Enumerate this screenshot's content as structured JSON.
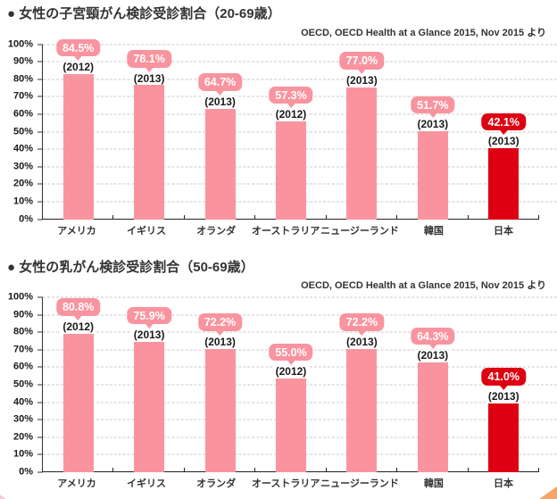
{
  "colors": {
    "bar_pink": "#f9949f",
    "highlight_red": "#de0012",
    "grid": "#c9c9c9",
    "axis": "#222222",
    "title_text": "#333333"
  },
  "chart_data": [
    {
      "type": "bar",
      "title": "● 女性の子宮頸がん検診受診割合（20-69歳）",
      "source": "OECD, OECD Health at a Glance 2015, Nov 2015 より",
      "categories": [
        "アメリカ",
        "イギリス",
        "オランダ",
        "オーストラリア",
        "ニュージーランド",
        "韓国",
        "日本"
      ],
      "values": [
        84.5,
        78.1,
        64.7,
        57.3,
        77.0,
        51.7,
        42.1
      ],
      "value_labels": [
        "84.5%",
        "78.1%",
        "64.7%",
        "57.3%",
        "77.0%",
        "51.7%",
        "42.1%"
      ],
      "years": [
        "(2012)",
        "(2013)",
        "(2013)",
        "(2012)",
        "(2013)",
        "(2013)",
        "(2013)"
      ],
      "highlight_index": 6,
      "bar_color": "#f9949f",
      "highlight_color": "#de0012",
      "xlabel": "",
      "ylabel": "",
      "ylim": [
        0,
        100
      ],
      "ytick_step": 10,
      "ytick_suffix": "%",
      "grid": true,
      "legend": false
    },
    {
      "type": "bar",
      "title": "● 女性の乳がん検診受診割合（50-69歳）",
      "source": "OECD, OECD Health at a Glance 2015, Nov 2015 より",
      "categories": [
        "アメリカ",
        "イギリス",
        "オランダ",
        "オーストラリア",
        "ニュージーランド",
        "韓国",
        "日本"
      ],
      "values": [
        80.8,
        75.9,
        72.2,
        55.0,
        72.2,
        64.3,
        41.0
      ],
      "value_labels": [
        "80.8%",
        "75.9%",
        "72.2%",
        "55.0%",
        "72.2%",
        "64.3%",
        "41.0%"
      ],
      "years": [
        "(2012)",
        "(2013)",
        "(2013)",
        "(2012)",
        "(2013)",
        "(2013)",
        "(2013)"
      ],
      "highlight_index": 6,
      "bar_color": "#f9949f",
      "highlight_color": "#de0012",
      "xlabel": "",
      "ylabel": "",
      "ylim": [
        0,
        100
      ],
      "ytick_step": 10,
      "ytick_suffix": "%",
      "grid": true,
      "legend": false
    }
  ]
}
